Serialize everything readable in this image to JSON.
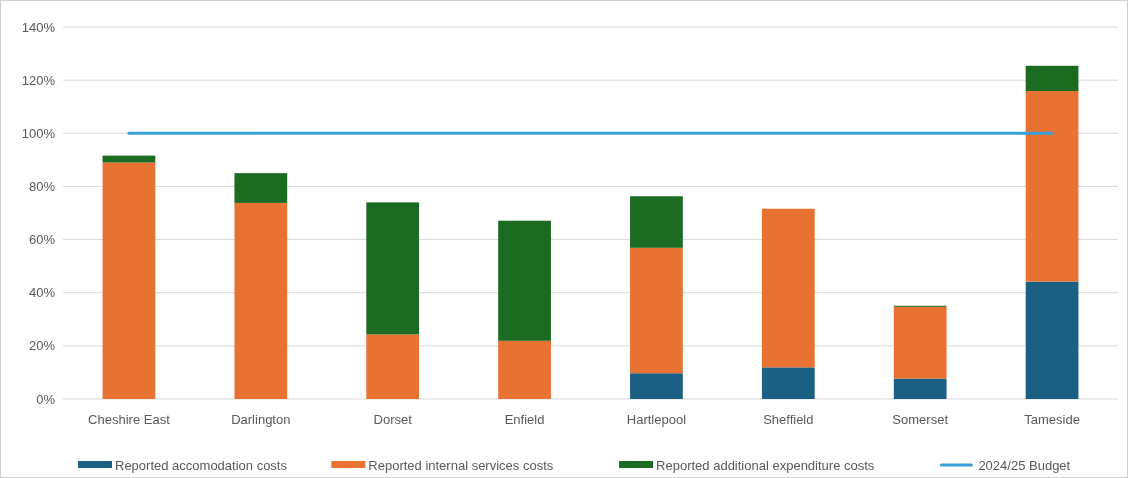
{
  "chart_data": {
    "type": "bar",
    "stacked": true,
    "categories": [
      "Cheshire East",
      "Darlington",
      "Dorset",
      "Enfield",
      "Hartlepool",
      "Sheffield",
      "Somerset",
      "Tameside"
    ],
    "series": [
      {
        "name": "Reported accomodation costs",
        "color": "#1b6083",
        "values": [
          0,
          0,
          0,
          0,
          9.7,
          11.9,
          7.7,
          44.2
        ]
      },
      {
        "name": "Reported internal services costs",
        "color": "#e87232",
        "values": [
          89,
          73.8,
          24.3,
          21.9,
          47.2,
          59.7,
          27,
          71.7
        ]
      },
      {
        "name": "Reported additional expenditure costs",
        "color": "#1c6b23",
        "values": [
          2.6,
          11.2,
          49.7,
          45.2,
          19.4,
          0,
          0.4,
          9.5
        ]
      },
      {
        "name": "2024/25 Budget",
        "type": "line",
        "color": "#3aa0d8",
        "values": [
          100,
          100,
          100,
          100,
          100,
          100,
          100,
          100
        ]
      }
    ],
    "ylim": [
      0,
      140
    ],
    "yticks": [
      {
        "value": 0,
        "label": "0%"
      },
      {
        "value": 20,
        "label": "20%"
      },
      {
        "value": 40,
        "label": "40%"
      },
      {
        "value": 60,
        "label": "60%"
      },
      {
        "value": 80,
        "label": "80%"
      },
      {
        "value": 100,
        "label": "100%"
      },
      {
        "value": 120,
        "label": "120%"
      },
      {
        "value": 140,
        "label": "140%"
      }
    ],
    "grid": "y",
    "legend": "bottom"
  }
}
